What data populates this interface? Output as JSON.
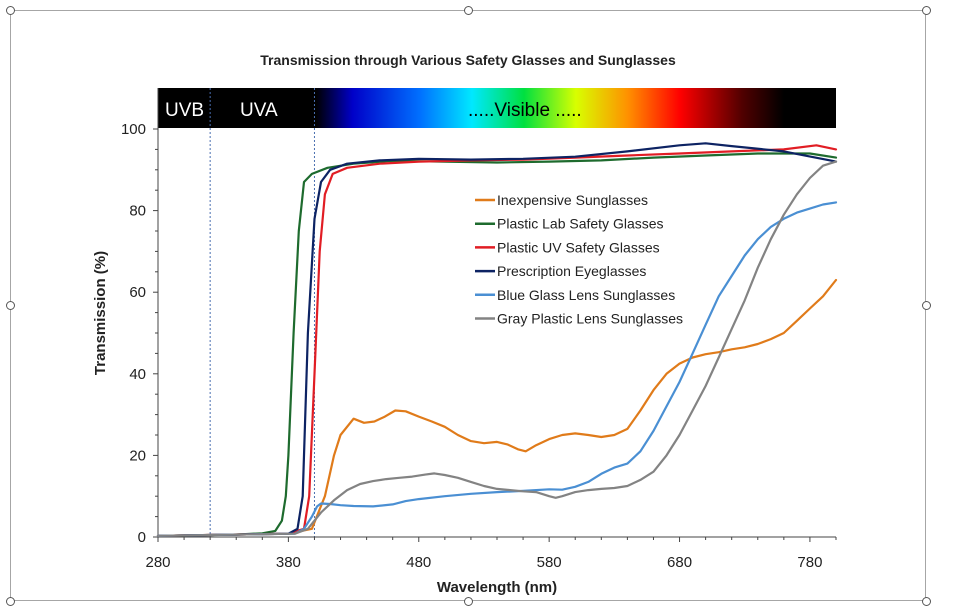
{
  "chart_data": {
    "type": "line",
    "title": "Transmission through Various Safety Glasses and Sunglasses",
    "xlabel": "Wavelength (nm)",
    "ylabel": "Transmission (%)",
    "xlim": [
      280,
      800
    ],
    "ylim": [
      0,
      100
    ],
    "xticks": [
      280,
      380,
      480,
      580,
      680,
      780
    ],
    "yticks": [
      0,
      20,
      40,
      60,
      80,
      100
    ],
    "grid": false,
    "legend_position": "center-right",
    "bands": [
      {
        "label": "UVB",
        "from": 280,
        "to": 320
      },
      {
        "label": "UVA",
        "from": 320,
        "to": 400
      },
      {
        "label": ".....Visible .....",
        "from": 400,
        "to": 800
      }
    ],
    "band_dividers": [
      320,
      400
    ],
    "series": [
      {
        "name": "Inexpensive Sunglasses",
        "color": "#e07b1a",
        "points": [
          [
            280,
            0.3
          ],
          [
            380,
            0.8
          ],
          [
            398,
            2
          ],
          [
            408,
            10
          ],
          [
            415,
            20
          ],
          [
            420,
            25
          ],
          [
            430,
            29
          ],
          [
            438,
            28
          ],
          [
            446,
            28.3
          ],
          [
            454,
            29.5
          ],
          [
            462,
            31
          ],
          [
            470,
            30.8
          ],
          [
            480,
            29.5
          ],
          [
            490,
            28.3
          ],
          [
            500,
            27
          ],
          [
            510,
            25
          ],
          [
            520,
            23.5
          ],
          [
            530,
            23
          ],
          [
            540,
            23.3
          ],
          [
            548,
            22.7
          ],
          [
            556,
            21.5
          ],
          [
            562,
            21
          ],
          [
            570,
            22.5
          ],
          [
            580,
            24
          ],
          [
            590,
            25
          ],
          [
            600,
            25.4
          ],
          [
            610,
            25
          ],
          [
            620,
            24.5
          ],
          [
            630,
            25
          ],
          [
            640,
            26.5
          ],
          [
            650,
            31
          ],
          [
            660,
            36
          ],
          [
            670,
            40
          ],
          [
            680,
            42.5
          ],
          [
            690,
            44
          ],
          [
            700,
            44.8
          ],
          [
            710,
            45.3
          ],
          [
            720,
            46
          ],
          [
            730,
            46.5
          ],
          [
            740,
            47.3
          ],
          [
            750,
            48.5
          ],
          [
            760,
            50
          ],
          [
            770,
            53
          ],
          [
            780,
            56
          ],
          [
            790,
            59
          ],
          [
            800,
            63
          ]
        ]
      },
      {
        "name": "Plastic Lab Safety Glasses",
        "color": "#1e6b2e",
        "points": [
          [
            280,
            0.3
          ],
          [
            340,
            0.6
          ],
          [
            360,
            0.9
          ],
          [
            370,
            1.5
          ],
          [
            375,
            4
          ],
          [
            378,
            10
          ],
          [
            380,
            20
          ],
          [
            384,
            50
          ],
          [
            388,
            75
          ],
          [
            392,
            87
          ],
          [
            398,
            89
          ],
          [
            410,
            90.5
          ],
          [
            430,
            91.5
          ],
          [
            460,
            92.2
          ],
          [
            500,
            92
          ],
          [
            540,
            91.8
          ],
          [
            580,
            92
          ],
          [
            620,
            92.3
          ],
          [
            660,
            93
          ],
          [
            700,
            93.5
          ],
          [
            740,
            94
          ],
          [
            780,
            94
          ],
          [
            800,
            93
          ]
        ]
      },
      {
        "name": "Plastic UV Safety Glasses",
        "color": "#e11d24",
        "points": [
          [
            280,
            0.3
          ],
          [
            380,
            0.8
          ],
          [
            392,
            2
          ],
          [
            396,
            10
          ],
          [
            400,
            40
          ],
          [
            404,
            70
          ],
          [
            408,
            84
          ],
          [
            414,
            89
          ],
          [
            425,
            90.5
          ],
          [
            450,
            91.5
          ],
          [
            480,
            92
          ],
          [
            520,
            92.3
          ],
          [
            560,
            92.5
          ],
          [
            600,
            93
          ],
          [
            640,
            93.5
          ],
          [
            680,
            94
          ],
          [
            720,
            94.5
          ],
          [
            760,
            95
          ],
          [
            785,
            96
          ],
          [
            800,
            95
          ]
        ]
      },
      {
        "name": "Prescription Eyeglasses",
        "color": "#0d2363",
        "points": [
          [
            280,
            0.3
          ],
          [
            380,
            0.8
          ],
          [
            387,
            2
          ],
          [
            391,
            10
          ],
          [
            395,
            50
          ],
          [
            400,
            78
          ],
          [
            405,
            87
          ],
          [
            412,
            90
          ],
          [
            425,
            91.5
          ],
          [
            450,
            92.3
          ],
          [
            480,
            92.7
          ],
          [
            520,
            92.5
          ],
          [
            560,
            92.7
          ],
          [
            600,
            93.2
          ],
          [
            640,
            94.5
          ],
          [
            680,
            96
          ],
          [
            700,
            96.5
          ],
          [
            720,
            95.8
          ],
          [
            760,
            94.5
          ],
          [
            800,
            92
          ]
        ]
      },
      {
        "name": "Blue Glass Lens Sunglasses",
        "color": "#4a8fd3",
        "points": [
          [
            280,
            0.3
          ],
          [
            385,
            0.8
          ],
          [
            392,
            2
          ],
          [
            398,
            5
          ],
          [
            402,
            7.5
          ],
          [
            405,
            8.2
          ],
          [
            412,
            8.1
          ],
          [
            420,
            7.8
          ],
          [
            430,
            7.6
          ],
          [
            445,
            7.5
          ],
          [
            460,
            8
          ],
          [
            470,
            8.8
          ],
          [
            480,
            9.3
          ],
          [
            500,
            10
          ],
          [
            520,
            10.6
          ],
          [
            540,
            11
          ],
          [
            560,
            11.3
          ],
          [
            580,
            11.7
          ],
          [
            590,
            11.6
          ],
          [
            600,
            12.3
          ],
          [
            610,
            13.5
          ],
          [
            620,
            15.5
          ],
          [
            630,
            17
          ],
          [
            640,
            18
          ],
          [
            650,
            21
          ],
          [
            660,
            26
          ],
          [
            670,
            32
          ],
          [
            680,
            38
          ],
          [
            690,
            45
          ],
          [
            700,
            52
          ],
          [
            710,
            59
          ],
          [
            720,
            64
          ],
          [
            730,
            69
          ],
          [
            740,
            73
          ],
          [
            750,
            76
          ],
          [
            760,
            78
          ],
          [
            770,
            79.5
          ],
          [
            780,
            80.5
          ],
          [
            790,
            81.5
          ],
          [
            800,
            82
          ]
        ]
      },
      {
        "name": "Gray Plastic Lens Sunglasses",
        "color": "#838383",
        "points": [
          [
            280,
            0.3
          ],
          [
            385,
            0.8
          ],
          [
            395,
            2
          ],
          [
            405,
            6
          ],
          [
            415,
            9
          ],
          [
            425,
            11.5
          ],
          [
            435,
            13
          ],
          [
            445,
            13.7
          ],
          [
            455,
            14.2
          ],
          [
            465,
            14.5
          ],
          [
            475,
            14.8
          ],
          [
            485,
            15.3
          ],
          [
            492,
            15.6
          ],
          [
            500,
            15.2
          ],
          [
            510,
            14.5
          ],
          [
            520,
            13.5
          ],
          [
            530,
            12.5
          ],
          [
            540,
            11.8
          ],
          [
            550,
            11.5
          ],
          [
            560,
            11.2
          ],
          [
            570,
            11
          ],
          [
            580,
            10
          ],
          [
            585,
            9.6
          ],
          [
            590,
            10
          ],
          [
            600,
            11
          ],
          [
            610,
            11.5
          ],
          [
            620,
            11.8
          ],
          [
            630,
            12
          ],
          [
            640,
            12.5
          ],
          [
            650,
            14
          ],
          [
            660,
            16
          ],
          [
            670,
            20
          ],
          [
            680,
            25
          ],
          [
            690,
            31
          ],
          [
            700,
            37
          ],
          [
            710,
            44
          ],
          [
            720,
            51
          ],
          [
            730,
            58
          ],
          [
            740,
            66
          ],
          [
            750,
            73
          ],
          [
            760,
            79
          ],
          [
            770,
            84
          ],
          [
            780,
            88
          ],
          [
            790,
            91
          ],
          [
            800,
            92
          ]
        ]
      }
    ]
  }
}
